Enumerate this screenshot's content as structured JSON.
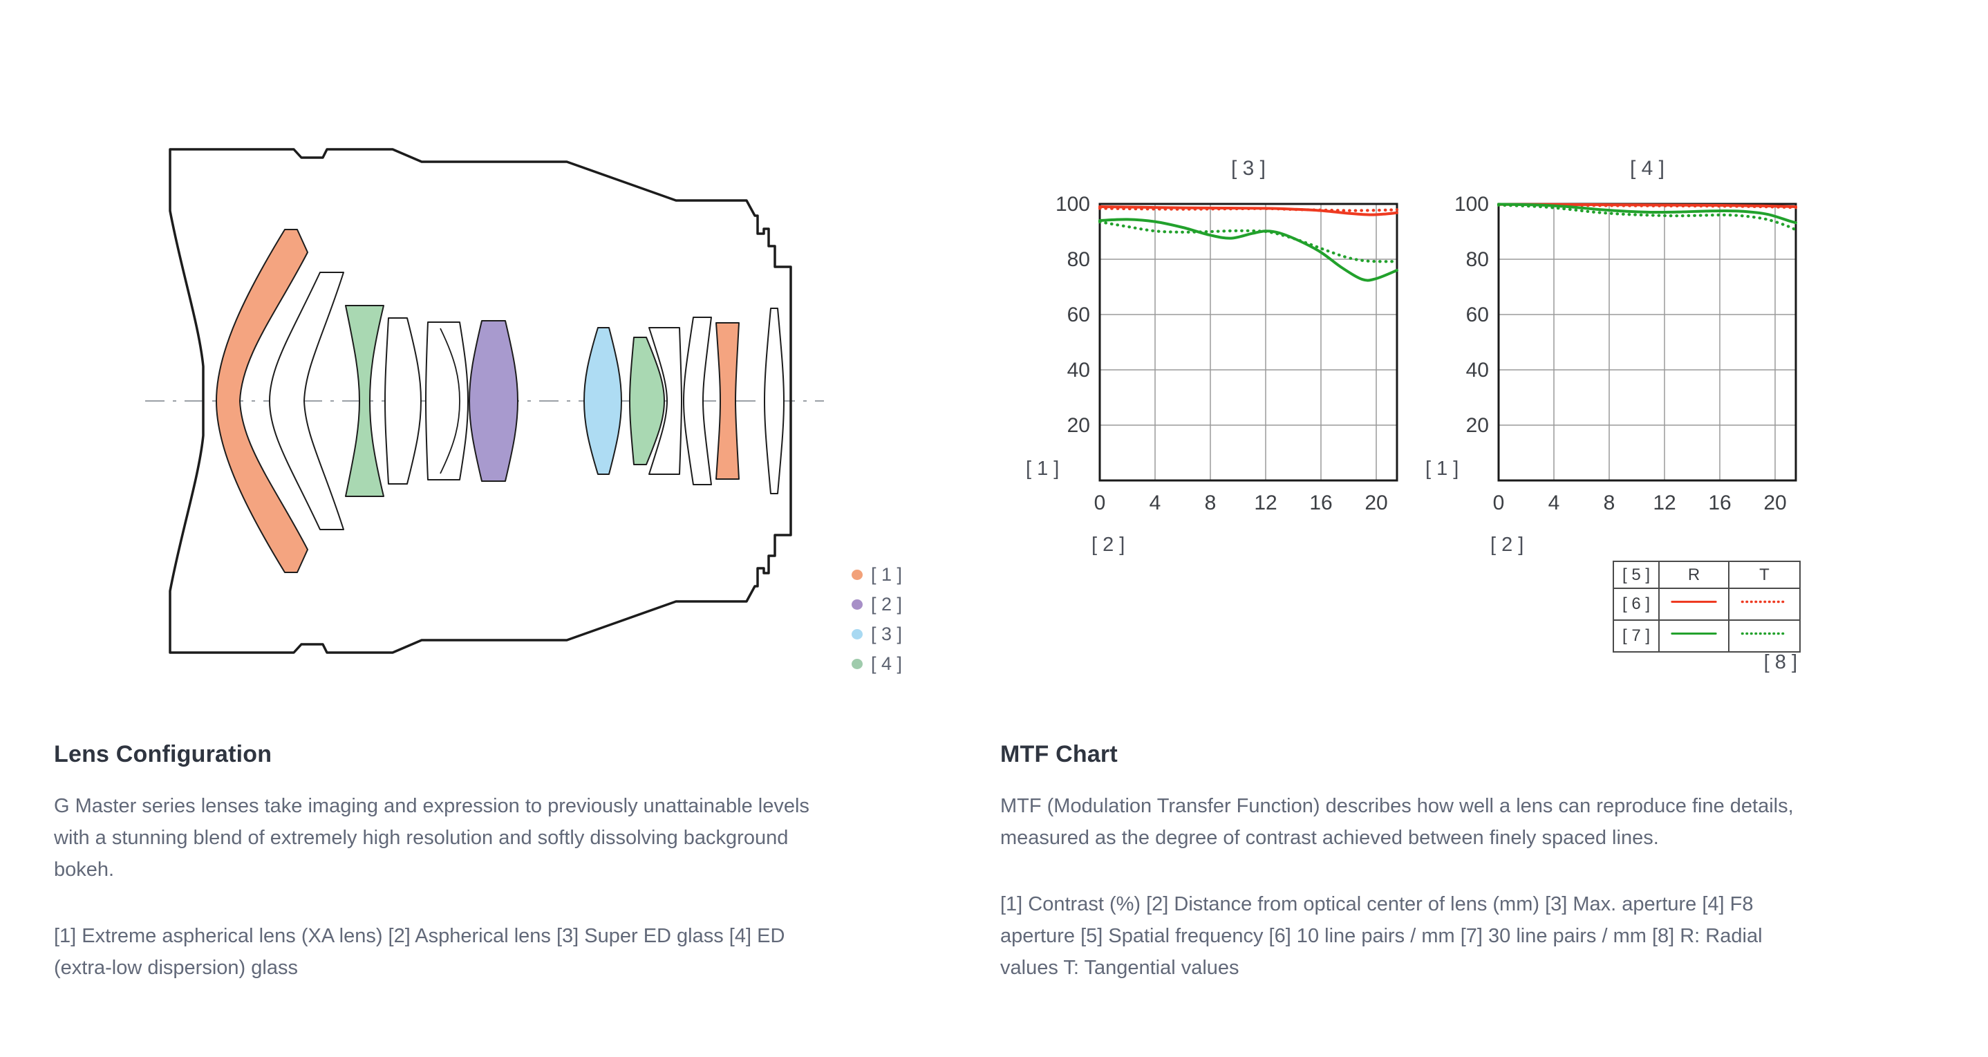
{
  "colors": {
    "background": "#ffffff",
    "curve_red": "#ee3a21",
    "curve_green": "#22a12c",
    "grid": "#9a9a9a",
    "frame": "#1a1a1a",
    "axis_dash": "#9aa0a6",
    "lens_outline": "#1c1c1c",
    "fill_white": "#ffffff",
    "fill_orange": "#f4a480",
    "fill_green": "#a9d8b2",
    "fill_purple": "#a89ace",
    "fill_blue": "#aedcf3",
    "dot_orange": "#f2a179",
    "dot_purple": "#a78fc7",
    "dot_blue": "#a8d9f2",
    "dot_green": "#9fcbac"
  },
  "lens_section": {
    "legend": [
      {
        "label": "[ 1 ]",
        "color_key": "dot_orange",
        "meaning": "Extreme aspherical lens (XA lens)"
      },
      {
        "label": "[ 2 ]",
        "color_key": "dot_purple",
        "meaning": "Aspherical lens"
      },
      {
        "label": "[ 3 ]",
        "color_key": "dot_blue",
        "meaning": "Super ED glass"
      },
      {
        "label": "[ 4 ]",
        "color_key": "dot_green",
        "meaning": "ED (extra-low dispersion) glass"
      }
    ]
  },
  "left_text": {
    "heading": "Lens Configuration",
    "para1": "G Master series lenses take imaging and expression to previously unattainable levels with a stunning blend of extremely high resolution and softly dissolving background bokeh.",
    "para2": "[1] Extreme aspherical lens (XA lens)  [2] Aspherical lens  [3] Super ED glass  [4] ED (extra-low dispersion) glass"
  },
  "right_text": {
    "heading": "MTF Chart",
    "para1": "MTF (Modulation Transfer Function) describes how well a lens can reproduce fine details, measured as the degree of contrast achieved between finely spaced lines.",
    "para2": "[1] Contrast (%)  [2] Distance from optical center of lens (mm)  [3] Max. aperture  [4] F8 aperture  [5] Spatial frequency  [6] 10 line pairs / mm  [7] 30 line pairs / mm [8] R: Radial values  T: Tangential values"
  },
  "mtf_table": {
    "header": [
      "[ 5 ]",
      "R",
      "T"
    ],
    "rows": [
      {
        "label": "[ 6 ]",
        "color_key": "curve_red",
        "meaning": "10 line pairs / mm"
      },
      {
        "label": "[ 7 ]",
        "color_key": "curve_green",
        "meaning": "30 line pairs / mm"
      }
    ],
    "footnote": "[ 8 ]"
  },
  "chart_data": [
    {
      "type": "line",
      "title": "[ 3 ]",
      "title_meaning": "Max. aperture",
      "ylabel": "[ 1 ]",
      "xlabel": "[ 2 ]",
      "xlim": [
        0,
        21.5
      ],
      "ylim": [
        0,
        100
      ],
      "xticks": [
        0,
        4,
        8,
        12,
        16,
        20
      ],
      "yticks": [
        20,
        40,
        60,
        80,
        100
      ],
      "grid": true,
      "series": [
        {
          "name": "R 10 line pairs/mm",
          "color_key": "curve_red",
          "style": "solid",
          "points": [
            [
              0,
              99
            ],
            [
              3,
              98.8
            ],
            [
              6,
              98.6
            ],
            [
              9,
              98.5
            ],
            [
              12,
              98.4
            ],
            [
              14,
              98.1
            ],
            [
              16,
              97.6
            ],
            [
              18,
              96.6
            ],
            [
              19.5,
              96.1
            ],
            [
              20.5,
              96.3
            ],
            [
              21.5,
              96.8
            ]
          ]
        },
        {
          "name": "T 10 line pairs/mm",
          "color_key": "curve_red",
          "style": "dotted",
          "points": [
            [
              0,
              98.4
            ],
            [
              3,
              98.2
            ],
            [
              6,
              98.1
            ],
            [
              9,
              98.2
            ],
            [
              12,
              98.3
            ],
            [
              14,
              98.0
            ],
            [
              16,
              97.8
            ],
            [
              18,
              97.6
            ],
            [
              20,
              97.7
            ],
            [
              21.5,
              97.9
            ]
          ]
        },
        {
          "name": "R 30 line pairs/mm",
          "color_key": "curve_green",
          "style": "solid",
          "points": [
            [
              0,
              94
            ],
            [
              2,
              94.4
            ],
            [
              4,
              93.6
            ],
            [
              6,
              91.5
            ],
            [
              8,
              88.7
            ],
            [
              9.5,
              87.6
            ],
            [
              11,
              89.3
            ],
            [
              12,
              90.2
            ],
            [
              13,
              89.5
            ],
            [
              14.5,
              86.5
            ],
            [
              16,
              82.5
            ],
            [
              17.5,
              77
            ],
            [
              19,
              72.7
            ],
            [
              20,
              73
            ],
            [
              21.5,
              76
            ]
          ]
        },
        {
          "name": "T 30 line pairs/mm",
          "color_key": "curve_green",
          "style": "dotted",
          "points": [
            [
              0,
              93.5
            ],
            [
              2,
              91.8
            ],
            [
              4,
              90.2
            ],
            [
              6,
              89.8
            ],
            [
              8,
              90
            ],
            [
              10,
              90.3
            ],
            [
              12,
              90
            ],
            [
              13.5,
              88.3
            ],
            [
              15,
              85.8
            ],
            [
              16.5,
              83
            ],
            [
              18,
              80.5
            ],
            [
              19.5,
              79.3
            ],
            [
              21.5,
              79.2
            ]
          ]
        }
      ]
    },
    {
      "type": "line",
      "title": "[ 4 ]",
      "title_meaning": "F8 aperture",
      "ylabel": "[ 1 ]",
      "xlabel": "[ 2 ]",
      "xlim": [
        0,
        21.5
      ],
      "ylim": [
        0,
        100
      ],
      "xticks": [
        0,
        4,
        8,
        12,
        16,
        20
      ],
      "yticks": [
        20,
        40,
        60,
        80,
        100
      ],
      "grid": true,
      "series": [
        {
          "name": "R 10 line pairs/mm",
          "color_key": "curve_red",
          "style": "solid",
          "points": [
            [
              0,
              99.8
            ],
            [
              4,
              99.8
            ],
            [
              8,
              99.7
            ],
            [
              12,
              99.6
            ],
            [
              16,
              99.5
            ],
            [
              19,
              99.3
            ],
            [
              21.5,
              99
            ]
          ]
        },
        {
          "name": "T 10 line pairs/mm",
          "color_key": "curve_red",
          "style": "dotted",
          "points": [
            [
              0,
              99.7
            ],
            [
              4,
              99.6
            ],
            [
              8,
              99.4
            ],
            [
              12,
              99.3
            ],
            [
              16,
              99.2
            ],
            [
              19,
              99
            ],
            [
              21.5,
              98.7
            ]
          ]
        },
        {
          "name": "R 30 line pairs/mm",
          "color_key": "curve_green",
          "style": "solid",
          "points": [
            [
              0,
              99.9
            ],
            [
              3,
              99.6
            ],
            [
              5,
              99
            ],
            [
              7,
              98.1
            ],
            [
              9,
              97.4
            ],
            [
              11,
              97
            ],
            [
              13,
              97.1
            ],
            [
              15,
              97.4
            ],
            [
              16.5,
              97.5
            ],
            [
              18,
              97.2
            ],
            [
              19.5,
              96.2
            ],
            [
              21,
              93.9
            ],
            [
              21.5,
              93.2
            ]
          ]
        },
        {
          "name": "T 30 line pairs/mm",
          "color_key": "curve_green",
          "style": "dotted",
          "points": [
            [
              0,
              99.6
            ],
            [
              3,
              99
            ],
            [
              5,
              98.1
            ],
            [
              7,
              97
            ],
            [
              9,
              96.3
            ],
            [
              11,
              95.9
            ],
            [
              13,
              95.7
            ],
            [
              15,
              95.9
            ],
            [
              16.5,
              96
            ],
            [
              18,
              95.5
            ],
            [
              19.5,
              94.3
            ],
            [
              21,
              91.8
            ],
            [
              21.5,
              90.5
            ]
          ]
        }
      ]
    }
  ],
  "chart_annotations": {
    "chart1_ylabel": "[ 1 ]",
    "chart1_xlabel": "[ 2 ]",
    "chart2_ylabel": "[ 1 ]",
    "chart2_xlabel": "[ 2 ]"
  }
}
